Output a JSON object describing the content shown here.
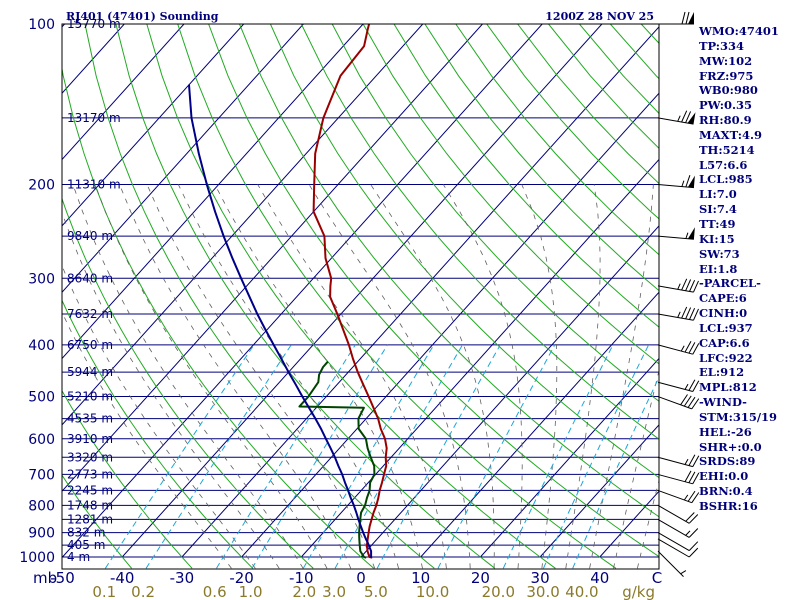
{
  "chart_data": {
    "type": "line",
    "subtype": "skew-t log-p sounding",
    "title": "RJ401 (47401) Sounding",
    "time": "1200Z 28 NOV 25",
    "pressure_axis_label": "mb",
    "mixing_ratio_label": "g/kg",
    "p_range": [
      1000,
      100
    ],
    "t_range_at_surface": [
      -50,
      50
    ],
    "pressure_ticks": [
      100,
      200,
      300,
      400,
      500,
      600,
      700,
      800,
      900,
      1000
    ],
    "temperature_ticks": [
      -50,
      -40,
      -30,
      -20,
      -10,
      0,
      10,
      20,
      30,
      40
    ],
    "temperature_tick_labels": [
      "-50",
      "-40",
      "-30",
      "-20",
      "-10",
      "0",
      "10",
      "20",
      "30",
      "40",
      "C"
    ],
    "mixing_ratio_labels": [
      {
        "text": "0.1",
        "t": -43
      },
      {
        "text": "0.2",
        "t": -36.5
      },
      {
        "text": "0.6",
        "t": -24.5
      },
      {
        "text": "1.0",
        "t": -18.5
      },
      {
        "text": "2.0",
        "t": -9.5
      },
      {
        "text": "3.0",
        "t": -4.5
      },
      {
        "text": "5.0",
        "t": 2.5
      },
      {
        "text": "10.0",
        "t": 12.0
      },
      {
        "text": "20.0",
        "t": 23.0
      },
      {
        "text": "30.0",
        "t": 30.5
      },
      {
        "text": "40.0",
        "t": 37.0
      },
      {
        "text": "g/kg",
        "t": 46.5
      }
    ],
    "height_labels": [
      {
        "p": 100,
        "text": "15770 m"
      },
      {
        "p": 150,
        "text": "13170 m"
      },
      {
        "p": 200,
        "text": "11310 m"
      },
      {
        "p": 250,
        "text": "9840 m"
      },
      {
        "p": 300,
        "text": "8640 m"
      },
      {
        "p": 350,
        "text": "7632 m"
      },
      {
        "p": 400,
        "text": "6750 m"
      },
      {
        "p": 450,
        "text": "5944 m"
      },
      {
        "p": 500,
        "text": "5210 m"
      },
      {
        "p": 550,
        "text": "4535 m"
      },
      {
        "p": 600,
        "text": "3910 m"
      },
      {
        "p": 650,
        "text": "3320 m"
      },
      {
        "p": 700,
        "text": "2773 m"
      },
      {
        "p": 750,
        "text": "2245 m"
      },
      {
        "p": 800,
        "text": "1748 m"
      },
      {
        "p": 850,
        "text": "1281 m"
      },
      {
        "p": 900,
        "text": "832 m"
      },
      {
        "p": 950,
        "text": "405 m"
      },
      {
        "p": 1000,
        "text": "4 m"
      }
    ],
    "series": [
      {
        "name": "",
        "role": "temperature",
        "color": "#990000",
        "points": [
          [
            1003,
            2.0
          ],
          [
            1000,
            1.4
          ],
          [
            975,
            0.2
          ],
          [
            950,
            -0.8
          ],
          [
            925,
            -1.6
          ],
          [
            900,
            -2.4
          ],
          [
            875,
            -3.2
          ],
          [
            850,
            -3.9
          ],
          [
            825,
            -4.6
          ],
          [
            800,
            -5.2
          ],
          [
            775,
            -6.0
          ],
          [
            750,
            -6.9
          ],
          [
            725,
            -7.7
          ],
          [
            700,
            -8.6
          ],
          [
            675,
            -9.5
          ],
          [
            650,
            -10.9
          ],
          [
            625,
            -12.1
          ],
          [
            600,
            -13.8
          ],
          [
            575,
            -16.0
          ],
          [
            550,
            -18.0
          ],
          [
            525,
            -20.4
          ],
          [
            500,
            -22.9
          ],
          [
            475,
            -25.6
          ],
          [
            450,
            -28.4
          ],
          [
            425,
            -31.2
          ],
          [
            400,
            -34.0
          ],
          [
            375,
            -37.2
          ],
          [
            350,
            -40.6
          ],
          [
            325,
            -44.4
          ],
          [
            310,
            -46.0
          ],
          [
            300,
            -47.0
          ],
          [
            275,
            -51.0
          ],
          [
            250,
            -54.5
          ],
          [
            225,
            -60.0
          ],
          [
            200,
            -64.0
          ],
          [
            175,
            -68.5
          ],
          [
            150,
            -72.5
          ],
          [
            125,
            -76.0
          ],
          [
            110,
            -76.5
          ],
          [
            102,
            -78.5
          ],
          [
            100,
            -79.0
          ]
        ]
      },
      {
        "name": "",
        "role": "dewpoint",
        "color": "#004400",
        "points": [
          [
            1003,
            1.0
          ],
          [
            1000,
            0.5
          ],
          [
            975,
            -1.0
          ],
          [
            950,
            -2.0
          ],
          [
            925,
            -3.0
          ],
          [
            900,
            -4.0
          ],
          [
            875,
            -4.9
          ],
          [
            850,
            -5.8
          ],
          [
            825,
            -6.7
          ],
          [
            800,
            -7.1
          ],
          [
            775,
            -7.9
          ],
          [
            750,
            -8.6
          ],
          [
            725,
            -9.7
          ],
          [
            700,
            -10.2
          ],
          [
            675,
            -11.5
          ],
          [
            650,
            -13.4
          ],
          [
            625,
            -15.3
          ],
          [
            600,
            -17.0
          ],
          [
            575,
            -19.7
          ],
          [
            550,
            -21.3
          ],
          [
            525,
            -22.0
          ],
          [
            522,
            -33.0
          ],
          [
            510,
            -33.0
          ],
          [
            500,
            -33.0
          ],
          [
            470,
            -33.5
          ],
          [
            455,
            -34.5
          ],
          [
            440,
            -35.0
          ],
          [
            430,
            -35.0
          ]
        ]
      },
      {
        "name": "",
        "role": "parcel",
        "color": "#000088",
        "points": [
          [
            1003,
            1.8
          ],
          [
            1000,
            1.7
          ],
          [
            975,
            0.8
          ],
          [
            950,
            -0.5
          ],
          [
            937,
            -1.2
          ],
          [
            925,
            -1.9
          ],
          [
            900,
            -3.3
          ],
          [
            875,
            -4.7
          ],
          [
            850,
            -6.1
          ],
          [
            825,
            -7.5
          ],
          [
            800,
            -9.0
          ],
          [
            775,
            -10.6
          ],
          [
            750,
            -12.2
          ],
          [
            725,
            -13.9
          ],
          [
            700,
            -15.6
          ],
          [
            675,
            -17.5
          ],
          [
            650,
            -19.4
          ],
          [
            625,
            -21.5
          ],
          [
            600,
            -23.7
          ],
          [
            575,
            -26.0
          ],
          [
            550,
            -28.5
          ],
          [
            525,
            -31.2
          ],
          [
            500,
            -34.0
          ],
          [
            475,
            -36.9
          ],
          [
            450,
            -40.0
          ],
          [
            425,
            -43.2
          ],
          [
            400,
            -46.6
          ],
          [
            375,
            -50.2
          ],
          [
            350,
            -54.0
          ],
          [
            325,
            -57.9
          ],
          [
            300,
            -62.1
          ],
          [
            275,
            -66.6
          ],
          [
            250,
            -71.4
          ],
          [
            225,
            -76.5
          ],
          [
            200,
            -82.0
          ],
          [
            175,
            -88.0
          ],
          [
            150,
            -94.6
          ],
          [
            130,
            -100.0
          ]
        ]
      }
    ],
    "wind_barbs": [
      {
        "p": 975,
        "dir": 315,
        "kt": 5
      },
      {
        "p": 925,
        "dir": 300,
        "kt": 10
      },
      {
        "p": 900,
        "dir": 300,
        "kt": 10
      },
      {
        "p": 850,
        "dir": 300,
        "kt": 15
      },
      {
        "p": 800,
        "dir": 300,
        "kt": 20
      },
      {
        "p": 750,
        "dir": 290,
        "kt": 25
      },
      {
        "p": 700,
        "dir": 285,
        "kt": 30
      },
      {
        "p": 650,
        "dir": 285,
        "kt": 25
      },
      {
        "p": 500,
        "dir": 290,
        "kt": 40
      },
      {
        "p": 470,
        "dir": 285,
        "kt": 25
      },
      {
        "p": 400,
        "dir": 285,
        "kt": 35
      },
      {
        "p": 350,
        "dir": 280,
        "kt": 45
      },
      {
        "p": 310,
        "dir": 280,
        "kt": 45
      },
      {
        "p": 250,
        "dir": 275,
        "kt": 55
      },
      {
        "p": 200,
        "dir": 275,
        "kt": 65
      },
      {
        "p": 150,
        "dir": 280,
        "kt": 75
      },
      {
        "p": 100,
        "dir": 270,
        "kt": 70
      }
    ],
    "indices": [
      "WMO:47401",
      "TP:334",
      "MW:102",
      "FRZ:975",
      "WB0:980",
      "PW:0.35",
      "RH:80.9",
      "MAXT:4.9",
      "TH:5214",
      "L57:6.6",
      "LCL:985",
      "LI:7.0",
      "SI:7.4",
      "TT:49",
      "KI:15",
      "SW:73",
      "EI:1.8",
      "-PARCEL-",
      "CAPE:6",
      "CINH:0",
      "LCL:937",
      "CAP:6.6",
      "LFC:922",
      "EL:912",
      "MPL:812",
      "-WIND-",
      "STM:315/19",
      "HEL:-26",
      "SHR+:0.0",
      "SRDS:89",
      "EHI:0.0",
      "BRN:0.4",
      "BSHR:16"
    ],
    "colors": {
      "axes": "#000000",
      "isobar": "#00007a",
      "isotherm": "#00007a",
      "dry_adiabat": "#22aa22",
      "moist_adiabat": "#606060",
      "mixing_ratio": "#1aa7d8",
      "text": "#00007a"
    },
    "grid": true
  }
}
